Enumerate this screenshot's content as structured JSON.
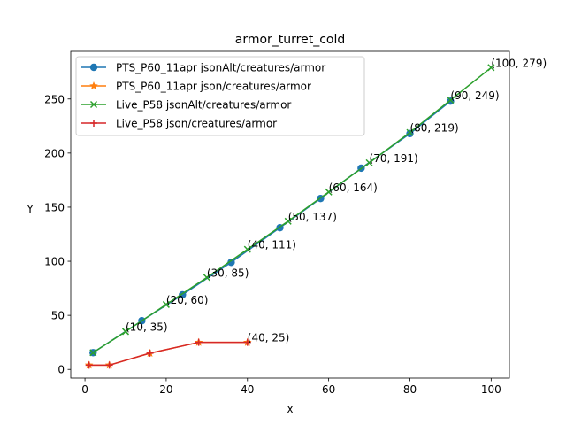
{
  "chart_data": {
    "type": "line",
    "title": "armor_turret_cold",
    "xlabel": "X",
    "ylabel": "Y",
    "xlim": [
      -3.5,
      104.5
    ],
    "ylim": [
      -8,
      294
    ],
    "xticks": [
      0,
      20,
      40,
      60,
      80,
      100
    ],
    "yticks": [
      0,
      50,
      100,
      150,
      200,
      250
    ],
    "grid": false,
    "legend_position": "top-left",
    "series": [
      {
        "name": "PTS_P60_11apr jsonAlt/creatures/armor",
        "color": "#1f77b4",
        "marker": "circle",
        "x": [
          2,
          14,
          24,
          36,
          48,
          58,
          68,
          80,
          90
        ],
        "y": [
          15.5,
          45,
          69,
          99,
          131,
          158,
          186,
          218,
          248
        ]
      },
      {
        "name": "PTS_P60_11apr json/creatures/armor",
        "color": "#ff7f0e",
        "marker": "star",
        "x": [
          1,
          6,
          16,
          28,
          40
        ],
        "y": [
          4,
          4,
          15,
          25,
          25
        ]
      },
      {
        "name": "Live_P58 jsonAlt/creatures/armor",
        "color": "#2ca02c",
        "marker": "x",
        "x": [
          2,
          10,
          20,
          30,
          40,
          50,
          60,
          70,
          80,
          90,
          100
        ],
        "y": [
          15.5,
          35,
          60,
          85,
          111,
          137,
          164,
          191,
          219,
          249,
          279
        ]
      },
      {
        "name": "Live_P58 json/creatures/armor",
        "color": "#d62728",
        "marker": "plus",
        "x": [
          1,
          6,
          16,
          28,
          40
        ],
        "y": [
          4,
          4,
          15,
          25,
          25
        ]
      }
    ],
    "annotations": [
      {
        "x": 10,
        "y": 35,
        "text": "(10, 35)"
      },
      {
        "x": 20,
        "y": 60,
        "text": "(20, 60)"
      },
      {
        "x": 30,
        "y": 85,
        "text": "(30, 85)"
      },
      {
        "x": 40,
        "y": 111,
        "text": "(40, 111)"
      },
      {
        "x": 50,
        "y": 137,
        "text": "(50, 137)"
      },
      {
        "x": 60,
        "y": 164,
        "text": "(60, 164)"
      },
      {
        "x": 70,
        "y": 191,
        "text": "(70, 191)"
      },
      {
        "x": 80,
        "y": 219,
        "text": "(80, 219)"
      },
      {
        "x": 90,
        "y": 249,
        "text": "(90, 249)"
      },
      {
        "x": 100,
        "y": 279,
        "text": "(100, 279)"
      },
      {
        "x": 40,
        "y": 25,
        "text": "(40, 25)"
      }
    ]
  }
}
